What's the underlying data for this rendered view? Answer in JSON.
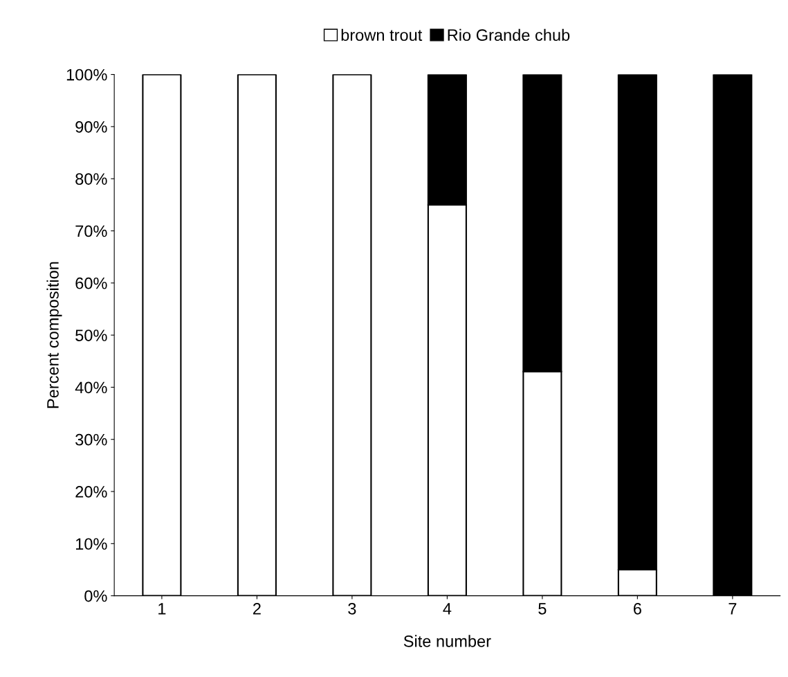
{
  "chart_data": {
    "type": "bar",
    "stacked": true,
    "xlabel": "Site number",
    "ylabel": "Percent composition",
    "categories": [
      "1",
      "2",
      "3",
      "4",
      "5",
      "6",
      "7"
    ],
    "series": [
      {
        "name": "brown trout",
        "color": "#ffffff",
        "values": [
          100,
          100,
          100,
          75,
          43,
          5,
          0
        ]
      },
      {
        "name": "Rio Grande chub",
        "color": "#000000",
        "values": [
          0,
          0,
          0,
          25,
          57,
          95,
          100
        ]
      }
    ],
    "ylim": [
      0,
      100
    ],
    "yticks": [
      {
        "value": 0,
        "label": "0%"
      },
      {
        "value": 10,
        "label": "10%"
      },
      {
        "value": 20,
        "label": "20%"
      },
      {
        "value": 30,
        "label": "30%"
      },
      {
        "value": 40,
        "label": "40%"
      },
      {
        "value": 50,
        "label": "50%"
      },
      {
        "value": 60,
        "label": "60%"
      },
      {
        "value": 70,
        "label": "70%"
      },
      {
        "value": 80,
        "label": "80%"
      },
      {
        "value": 90,
        "label": "90%"
      },
      {
        "value": 100,
        "label": "100%"
      }
    ],
    "grid": false,
    "legend": "top"
  }
}
